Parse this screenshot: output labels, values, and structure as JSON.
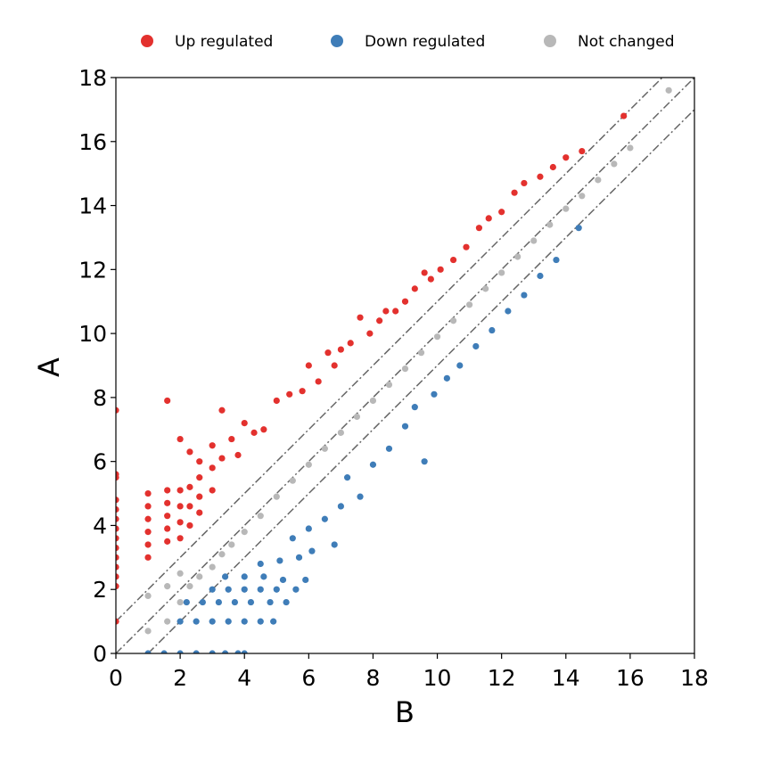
{
  "chart_data": {
    "type": "scatter",
    "xlabel": "B",
    "ylabel": "A",
    "xlim": [
      0,
      18
    ],
    "ylim": [
      0,
      18
    ],
    "xticks": [
      "0",
      "2",
      "4",
      "6",
      "8",
      "10",
      "12",
      "14",
      "16",
      "18"
    ],
    "yticks": [
      "0",
      "2",
      "4",
      "6",
      "8",
      "10",
      "12",
      "14",
      "16",
      "18"
    ],
    "grid": false,
    "legend_position": "top-center",
    "reference_lines": [
      {
        "style": "dash-dot",
        "color": "#666666",
        "intercept": 1,
        "slope": 1
      },
      {
        "style": "dash-dot",
        "color": "#666666",
        "intercept": 0,
        "slope": 1
      },
      {
        "style": "dash-dot",
        "color": "#666666",
        "intercept": -1,
        "slope": 1
      }
    ],
    "series": [
      {
        "name": "Up regulated",
        "color": "#e3312e",
        "points": [
          [
            0.0,
            7.6
          ],
          [
            0.0,
            5.6
          ],
          [
            0.0,
            5.5
          ],
          [
            0.0,
            4.8
          ],
          [
            0.0,
            4.5
          ],
          [
            0.0,
            4.2
          ],
          [
            0.0,
            3.9
          ],
          [
            0.0,
            3.6
          ],
          [
            0.0,
            3.3
          ],
          [
            0.0,
            3.0
          ],
          [
            0.0,
            2.7
          ],
          [
            0.0,
            2.4
          ],
          [
            0.0,
            2.1
          ],
          [
            0.0,
            1.0
          ],
          [
            1.0,
            5.0
          ],
          [
            1.0,
            4.6
          ],
          [
            1.0,
            4.2
          ],
          [
            1.0,
            3.8
          ],
          [
            1.0,
            3.4
          ],
          [
            1.0,
            3.0
          ],
          [
            1.6,
            7.9
          ],
          [
            1.6,
            5.1
          ],
          [
            1.6,
            4.7
          ],
          [
            1.6,
            4.3
          ],
          [
            1.6,
            3.9
          ],
          [
            1.6,
            3.5
          ],
          [
            2.0,
            6.7
          ],
          [
            2.0,
            5.1
          ],
          [
            2.0,
            4.6
          ],
          [
            2.0,
            4.1
          ],
          [
            2.0,
            3.6
          ],
          [
            2.3,
            6.3
          ],
          [
            2.3,
            5.2
          ],
          [
            2.3,
            4.6
          ],
          [
            2.3,
            4.0
          ],
          [
            2.6,
            6.0
          ],
          [
            2.6,
            5.5
          ],
          [
            2.6,
            4.9
          ],
          [
            2.6,
            4.4
          ],
          [
            3.0,
            6.5
          ],
          [
            3.0,
            5.8
          ],
          [
            3.0,
            5.1
          ],
          [
            3.3,
            7.6
          ],
          [
            3.3,
            6.1
          ],
          [
            3.6,
            6.7
          ],
          [
            3.8,
            6.2
          ],
          [
            4.0,
            7.2
          ],
          [
            4.3,
            6.9
          ],
          [
            4.6,
            7.0
          ],
          [
            5.0,
            7.9
          ],
          [
            5.4,
            8.1
          ],
          [
            5.8,
            8.2
          ],
          [
            6.0,
            9.0
          ],
          [
            6.3,
            8.5
          ],
          [
            6.6,
            9.4
          ],
          [
            6.8,
            9.0
          ],
          [
            7.0,
            9.5
          ],
          [
            7.3,
            9.7
          ],
          [
            7.6,
            10.5
          ],
          [
            7.9,
            10.0
          ],
          [
            8.2,
            10.4
          ],
          [
            8.4,
            10.7
          ],
          [
            8.7,
            10.7
          ],
          [
            9.0,
            11.0
          ],
          [
            9.3,
            11.4
          ],
          [
            9.6,
            11.9
          ],
          [
            9.8,
            11.7
          ],
          [
            10.1,
            12.0
          ],
          [
            10.5,
            12.3
          ],
          [
            10.9,
            12.7
          ],
          [
            11.3,
            13.3
          ],
          [
            11.6,
            13.6
          ],
          [
            12.0,
            13.8
          ],
          [
            12.4,
            14.4
          ],
          [
            12.7,
            14.7
          ],
          [
            13.2,
            14.9
          ],
          [
            13.6,
            15.2
          ],
          [
            14.0,
            15.5
          ],
          [
            14.5,
            15.7
          ],
          [
            15.8,
            16.8
          ]
        ]
      },
      {
        "name": "Down regulated",
        "color": "#3f7db8",
        "points": [
          [
            1.0,
            0.0
          ],
          [
            1.5,
            0.0
          ],
          [
            2.0,
            0.0
          ],
          [
            2.5,
            0.0
          ],
          [
            3.0,
            0.0
          ],
          [
            3.4,
            0.0
          ],
          [
            3.8,
            0.0
          ],
          [
            4.0,
            0.0
          ],
          [
            2.0,
            1.0
          ],
          [
            2.5,
            1.0
          ],
          [
            3.0,
            1.0
          ],
          [
            3.5,
            1.0
          ],
          [
            4.0,
            1.0
          ],
          [
            4.5,
            1.0
          ],
          [
            4.9,
            1.0
          ],
          [
            2.2,
            1.6
          ],
          [
            2.7,
            1.6
          ],
          [
            3.2,
            1.6
          ],
          [
            3.7,
            1.6
          ],
          [
            4.2,
            1.6
          ],
          [
            4.8,
            1.6
          ],
          [
            5.3,
            1.6
          ],
          [
            3.0,
            2.0
          ],
          [
            3.5,
            2.0
          ],
          [
            4.0,
            2.0
          ],
          [
            4.5,
            2.0
          ],
          [
            5.0,
            2.0
          ],
          [
            5.6,
            2.0
          ],
          [
            3.4,
            2.4
          ],
          [
            4.0,
            2.4
          ],
          [
            4.6,
            2.4
          ],
          [
            5.2,
            2.3
          ],
          [
            5.9,
            2.3
          ],
          [
            4.5,
            2.8
          ],
          [
            5.1,
            2.9
          ],
          [
            5.7,
            3.0
          ],
          [
            6.1,
            3.2
          ],
          [
            6.8,
            3.4
          ],
          [
            5.5,
            3.6
          ],
          [
            6.0,
            3.9
          ],
          [
            6.5,
            4.2
          ],
          [
            7.0,
            4.6
          ],
          [
            7.6,
            4.9
          ],
          [
            7.2,
            5.5
          ],
          [
            8.0,
            5.9
          ],
          [
            8.5,
            6.4
          ],
          [
            9.0,
            7.1
          ],
          [
            9.3,
            7.7
          ],
          [
            9.6,
            6.0
          ],
          [
            9.9,
            8.1
          ],
          [
            10.3,
            8.6
          ],
          [
            10.7,
            9.0
          ],
          [
            11.2,
            9.6
          ],
          [
            11.7,
            10.1
          ],
          [
            12.2,
            10.7
          ],
          [
            12.7,
            11.2
          ],
          [
            13.2,
            11.8
          ],
          [
            13.7,
            12.3
          ],
          [
            14.4,
            13.3
          ]
        ]
      },
      {
        "name": "Not changed",
        "color": "#b8b8b8",
        "points": [
          [
            1.0,
            0.7
          ],
          [
            1.0,
            1.8
          ],
          [
            1.6,
            1.0
          ],
          [
            1.6,
            2.1
          ],
          [
            2.0,
            1.6
          ],
          [
            2.0,
            2.5
          ],
          [
            2.3,
            2.1
          ],
          [
            2.6,
            2.4
          ],
          [
            3.0,
            2.7
          ],
          [
            3.3,
            3.1
          ],
          [
            3.6,
            3.4
          ],
          [
            4.0,
            3.8
          ],
          [
            4.5,
            4.3
          ],
          [
            5.0,
            4.9
          ],
          [
            5.5,
            5.4
          ],
          [
            6.0,
            5.9
          ],
          [
            6.5,
            6.4
          ],
          [
            7.0,
            6.9
          ],
          [
            7.5,
            7.4
          ],
          [
            8.0,
            7.9
          ],
          [
            8.5,
            8.4
          ],
          [
            9.0,
            8.9
          ],
          [
            9.5,
            9.4
          ],
          [
            10.0,
            9.9
          ],
          [
            10.5,
            10.4
          ],
          [
            11.0,
            10.9
          ],
          [
            11.5,
            11.4
          ],
          [
            12.0,
            11.9
          ],
          [
            12.5,
            12.4
          ],
          [
            13.0,
            12.9
          ],
          [
            13.5,
            13.4
          ],
          [
            14.0,
            13.9
          ],
          [
            14.5,
            14.3
          ],
          [
            15.0,
            14.8
          ],
          [
            15.5,
            15.3
          ],
          [
            16.0,
            15.8
          ],
          [
            17.2,
            17.6
          ]
        ]
      }
    ]
  }
}
